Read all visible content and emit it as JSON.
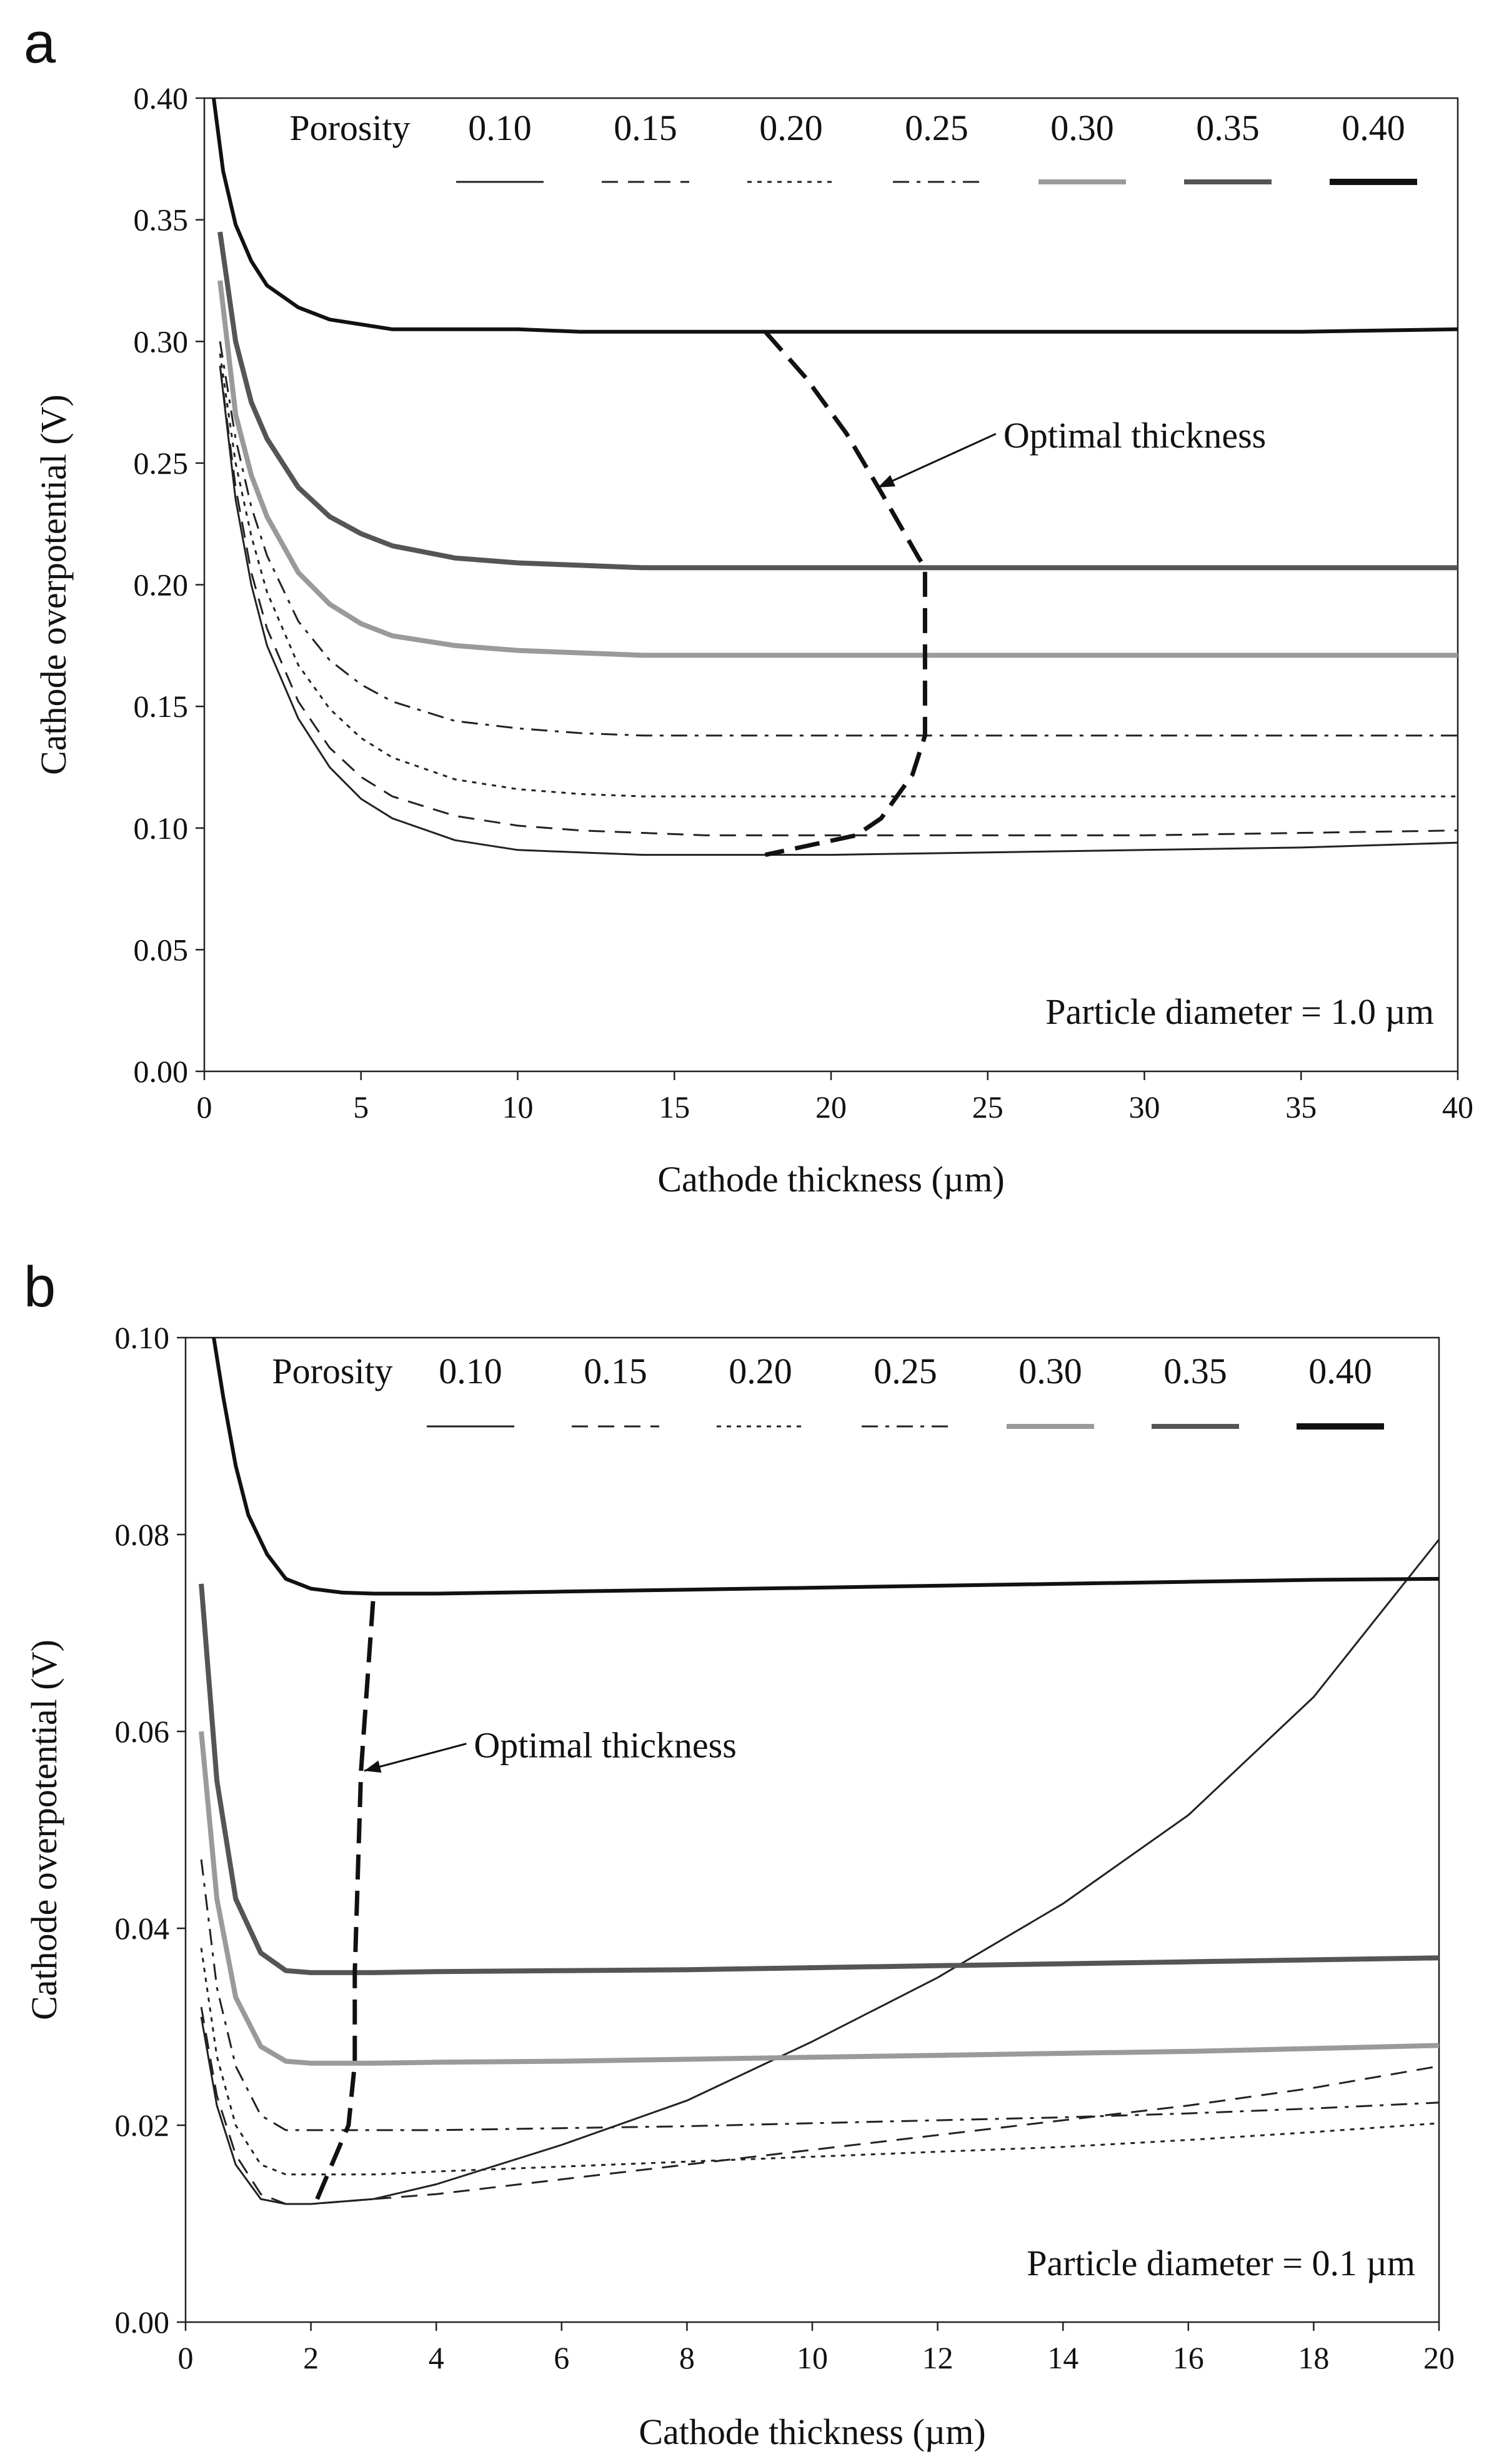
{
  "chart_data": [
    {
      "type": "line",
      "panel_label": "a",
      "title": "",
      "xlabel": "Cathode thickness (µm)",
      "ylabel": "Cathode overpotential (V)",
      "xlim": [
        0,
        40
      ],
      "ylim": [
        0,
        0.4
      ],
      "x_ticks": [
        0,
        5,
        10,
        15,
        20,
        25,
        30,
        35,
        40
      ],
      "x_tick_labels": [
        "0",
        "5",
        "10",
        "15",
        "20",
        "25",
        "30",
        "35",
        "40"
      ],
      "y_ticks": [
        0,
        0.05,
        0.1,
        0.15,
        0.2,
        0.25,
        0.3,
        0.35,
        0.4
      ],
      "y_tick_labels": [
        "0.00",
        "0.05",
        "0.10",
        "0.15",
        "0.20",
        "0.25",
        "0.30",
        "0.35",
        "0.40"
      ],
      "grid": false,
      "legend_title": "Porosity",
      "legend_position": "top-right",
      "note": "Particle diameter = 1.0 µm",
      "series": [
        {
          "name": "0.10",
          "style": "solid-thin",
          "color": "#222222",
          "x": [
            0.5,
            1,
            1.5,
            2,
            3,
            4,
            5,
            6,
            8,
            10,
            12,
            14,
            16,
            18,
            20,
            25,
            30,
            35,
            40
          ],
          "y": [
            0.29,
            0.235,
            0.2,
            0.175,
            0.145,
            0.125,
            0.112,
            0.104,
            0.095,
            0.091,
            0.09,
            0.089,
            0.089,
            0.089,
            0.089,
            0.09,
            0.091,
            0.092,
            0.094
          ]
        },
        {
          "name": "0.15",
          "style": "dashed",
          "color": "#222222",
          "x": [
            0.5,
            1,
            1.5,
            2,
            3,
            4,
            5,
            6,
            8,
            10,
            12,
            14,
            16,
            18,
            20,
            25,
            30,
            35,
            40
          ],
          "y": [
            0.29,
            0.24,
            0.205,
            0.182,
            0.152,
            0.133,
            0.121,
            0.113,
            0.105,
            0.101,
            0.099,
            0.098,
            0.097,
            0.097,
            0.097,
            0.097,
            0.097,
            0.098,
            0.099
          ]
        },
        {
          "name": "0.20",
          "style": "dotted",
          "color": "#222222",
          "x": [
            0.5,
            1,
            1.5,
            2,
            3,
            4,
            5,
            6,
            8,
            10,
            12,
            14,
            16,
            18,
            20,
            25,
            30,
            35,
            40
          ],
          "y": [
            0.295,
            0.25,
            0.22,
            0.197,
            0.167,
            0.149,
            0.137,
            0.129,
            0.12,
            0.116,
            0.114,
            0.113,
            0.113,
            0.113,
            0.113,
            0.113,
            0.113,
            0.113,
            0.113
          ]
        },
        {
          "name": "0.25",
          "style": "dash-dot",
          "color": "#222222",
          "x": [
            0.5,
            1,
            1.5,
            2,
            3,
            4,
            5,
            6,
            8,
            10,
            12,
            14,
            16,
            18,
            20,
            25,
            30,
            35,
            40
          ],
          "y": [
            0.3,
            0.26,
            0.232,
            0.212,
            0.185,
            0.169,
            0.159,
            0.152,
            0.144,
            0.141,
            0.139,
            0.138,
            0.138,
            0.138,
            0.138,
            0.138,
            0.138,
            0.138,
            0.138
          ]
        },
        {
          "name": "0.30",
          "style": "thick-gray",
          "color": "#9a9a9a",
          "x": [
            0.5,
            1,
            1.5,
            2,
            3,
            4,
            5,
            6,
            8,
            10,
            12,
            14,
            16,
            18,
            20,
            25,
            30,
            35,
            40
          ],
          "y": [
            0.325,
            0.27,
            0.245,
            0.228,
            0.205,
            0.192,
            0.184,
            0.179,
            0.175,
            0.173,
            0.172,
            0.171,
            0.171,
            0.171,
            0.171,
            0.171,
            0.171,
            0.171,
            0.171
          ]
        },
        {
          "name": "0.35",
          "style": "thick-dark",
          "color": "#555555",
          "x": [
            0.5,
            1,
            1.5,
            2,
            3,
            4,
            5,
            6,
            8,
            10,
            12,
            14,
            16,
            18,
            20,
            25,
            30,
            35,
            40
          ],
          "y": [
            0.345,
            0.3,
            0.275,
            0.26,
            0.24,
            0.228,
            0.221,
            0.216,
            0.211,
            0.209,
            0.208,
            0.207,
            0.207,
            0.207,
            0.207,
            0.207,
            0.207,
            0.207,
            0.207
          ]
        },
        {
          "name": "0.40",
          "style": "solid-thick",
          "color": "#111111",
          "x": [
            0.3,
            0.6,
            1,
            1.5,
            2,
            3,
            4,
            5,
            6,
            8,
            10,
            12,
            15,
            20,
            25,
            30,
            35,
            40
          ],
          "y": [
            0.4,
            0.37,
            0.348,
            0.333,
            0.323,
            0.314,
            0.309,
            0.307,
            0.305,
            0.305,
            0.305,
            0.304,
            0.304,
            0.304,
            0.304,
            0.304,
            0.304,
            0.305
          ]
        }
      ],
      "optimal_curve": {
        "label": "Optimal thickness",
        "x": [
          17.9,
          19.2,
          20.5,
          21.6,
          22.8,
          23,
          23,
          22.6,
          21.6,
          20.8,
          17.9
        ],
        "y": [
          0.304,
          0.285,
          0.262,
          0.238,
          0.211,
          0.207,
          0.138,
          0.122,
          0.104,
          0.097,
          0.089
        ]
      },
      "arrow": {
        "label_at": [
          25.5,
          0.261
        ],
        "points_to": [
          21.5,
          0.24
        ]
      }
    },
    {
      "type": "line",
      "panel_label": "b",
      "title": "",
      "xlabel": "Cathode thickness (µm)",
      "ylabel": "Cathode overpotential (V)",
      "xlim": [
        0,
        20
      ],
      "ylim": [
        0,
        0.1
      ],
      "x_ticks": [
        0,
        2,
        4,
        6,
        8,
        10,
        12,
        14,
        16,
        18,
        20
      ],
      "x_tick_labels": [
        "0",
        "2",
        "4",
        "6",
        "8",
        "10",
        "12",
        "14",
        "16",
        "18",
        "20"
      ],
      "y_ticks": [
        0,
        0.02,
        0.04,
        0.06,
        0.08,
        0.1
      ],
      "y_tick_labels": [
        "0.00",
        "0.02",
        "0.04",
        "0.06",
        "0.08",
        "0.10"
      ],
      "grid": false,
      "legend_title": "Porosity",
      "legend_position": "top-right",
      "note": "Particle diameter = 0.1 µm",
      "series": [
        {
          "name": "0.10",
          "style": "solid-thin",
          "color": "#222222",
          "x": [
            0.25,
            0.5,
            0.8,
            1.2,
            1.6,
            2,
            3,
            4,
            6,
            8,
            10,
            12,
            14,
            16,
            18,
            20
          ],
          "y": [
            0.031,
            0.022,
            0.016,
            0.0125,
            0.012,
            0.012,
            0.0125,
            0.014,
            0.018,
            0.0225,
            0.0285,
            0.035,
            0.0425,
            0.0515,
            0.0635,
            0.0795
          ]
        },
        {
          "name": "0.15",
          "style": "dashed",
          "color": "#222222",
          "x": [
            0.25,
            0.5,
            0.8,
            1.2,
            1.6,
            2,
            3,
            4,
            6,
            8,
            10,
            12,
            14,
            16,
            18,
            20
          ],
          "y": [
            0.032,
            0.023,
            0.017,
            0.013,
            0.012,
            0.012,
            0.0125,
            0.013,
            0.0145,
            0.016,
            0.0175,
            0.019,
            0.0205,
            0.022,
            0.0238,
            0.026
          ]
        },
        {
          "name": "0.20",
          "style": "dotted",
          "color": "#222222",
          "x": [
            0.25,
            0.5,
            0.8,
            1.2,
            1.6,
            2,
            3,
            4,
            6,
            8,
            10,
            12,
            14,
            16,
            18,
            20
          ],
          "y": [
            0.038,
            0.027,
            0.02,
            0.016,
            0.015,
            0.015,
            0.015,
            0.0153,
            0.0158,
            0.0163,
            0.0168,
            0.0173,
            0.0178,
            0.0185,
            0.0193,
            0.0202
          ]
        },
        {
          "name": "0.25",
          "style": "dash-dot",
          "color": "#222222",
          "x": [
            0.25,
            0.5,
            0.8,
            1.2,
            1.6,
            2,
            3,
            4,
            6,
            8,
            10,
            12,
            14,
            16,
            18,
            20
          ],
          "y": [
            0.047,
            0.034,
            0.026,
            0.021,
            0.0195,
            0.0195,
            0.0195,
            0.0195,
            0.0197,
            0.0199,
            0.0202,
            0.0205,
            0.0208,
            0.0212,
            0.0217,
            0.0223
          ]
        },
        {
          "name": "0.30",
          "style": "thick-gray",
          "color": "#9a9a9a",
          "x": [
            0.25,
            0.5,
            0.8,
            1.2,
            1.6,
            2,
            3,
            4,
            6,
            8,
            10,
            12,
            14,
            16,
            18,
            20
          ],
          "y": [
            0.06,
            0.043,
            0.033,
            0.028,
            0.0265,
            0.0263,
            0.0263,
            0.0264,
            0.0265,
            0.0267,
            0.0269,
            0.0271,
            0.0273,
            0.0275,
            0.0278,
            0.0281
          ]
        },
        {
          "name": "0.35",
          "style": "thick-dark",
          "color": "#555555",
          "x": [
            0.25,
            0.5,
            0.8,
            1.2,
            1.6,
            2,
            3,
            4,
            6,
            8,
            10,
            12,
            14,
            16,
            18,
            20
          ],
          "y": [
            0.075,
            0.055,
            0.043,
            0.0375,
            0.0357,
            0.0355,
            0.0355,
            0.0356,
            0.0357,
            0.0358,
            0.036,
            0.0362,
            0.0364,
            0.0366,
            0.0368,
            0.037
          ]
        },
        {
          "name": "0.40",
          "style": "solid-thick",
          "color": "#111111",
          "x": [
            0.45,
            0.6,
            0.8,
            1,
            1.3,
            1.6,
            2,
            2.5,
            3,
            4,
            6,
            8,
            10,
            12,
            14,
            16,
            18,
            20
          ],
          "y": [
            0.1,
            0.094,
            0.087,
            0.082,
            0.078,
            0.0755,
            0.0745,
            0.0741,
            0.074,
            0.074,
            0.0742,
            0.0744,
            0.0746,
            0.0748,
            0.075,
            0.0752,
            0.0754,
            0.0755
          ]
        }
      ],
      "optimal_curve": {
        "label": "Optimal thickness",
        "x": [
          2.1,
          2.3,
          2.6,
          2.7,
          2.7,
          2.8,
          3.0
        ],
        "y": [
          0.0125,
          0.0155,
          0.02,
          0.0263,
          0.0355,
          0.056,
          0.074
        ]
      },
      "arrow": {
        "label_at": [
          4.6,
          0.0585
        ],
        "points_to": [
          2.85,
          0.056
        ]
      }
    }
  ]
}
